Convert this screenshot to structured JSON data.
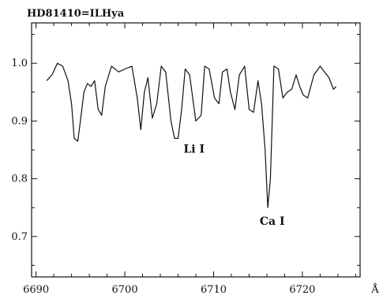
{
  "chart_data": {
    "type": "line",
    "title": "HD81410=ILHya",
    "xlabel": "",
    "x_unit": "Å",
    "ylabel": "",
    "xlim": [
      6689.5,
      6726.5
    ],
    "ylim": [
      0.63,
      1.07
    ],
    "x_ticks": [
      6690,
      6700,
      6710,
      6720
    ],
    "y_ticks": [
      0.7,
      0.8,
      0.9,
      1.0
    ],
    "x_tick_labels": [
      "6690",
      "6700",
      "6710",
      "6720"
    ],
    "y_tick_labels": [
      "0.7",
      "0.8",
      "0.9",
      "1.0"
    ],
    "grid": false,
    "series": [
      {
        "x": [
          6691.2,
          6691.8,
          6692.4,
          6693.0,
          6693.6,
          6694.0,
          6694.3,
          6694.7,
          6695.0,
          6695.4,
          6695.8,
          6696.2,
          6696.6,
          6697.0,
          6697.4,
          6697.8,
          6698.5,
          6699.3,
          6700.0,
          6700.8,
          6701.4,
          6701.8,
          6702.2,
          6702.6,
          6703.1,
          6703.6,
          6704.1,
          6704.6,
          6705.2,
          6705.6,
          6706.0,
          6706.4,
          6706.8,
          6707.3,
          6708.0,
          6708.6,
          6709.0,
          6709.5,
          6710.1,
          6710.6,
          6711.0,
          6711.5,
          6711.9,
          6712.4,
          6712.9,
          6713.5,
          6714.0,
          6714.5,
          6715.0,
          6715.4,
          6715.8,
          6716.1,
          6716.4,
          6716.8,
          6717.3,
          6717.8,
          6718.3,
          6718.8,
          6719.3,
          6719.7,
          6720.1,
          6720.6,
          6721.3,
          6722.0,
          6722.5,
          6723.0,
          6723.5,
          6723.8
        ],
        "y": [
          0.97,
          0.98,
          1.0,
          0.995,
          0.97,
          0.93,
          0.87,
          0.865,
          0.9,
          0.95,
          0.965,
          0.96,
          0.97,
          0.92,
          0.91,
          0.96,
          0.995,
          0.985,
          0.99,
          0.995,
          0.94,
          0.885,
          0.95,
          0.975,
          0.905,
          0.93,
          0.995,
          0.985,
          0.9,
          0.87,
          0.87,
          0.92,
          0.99,
          0.98,
          0.9,
          0.91,
          0.995,
          0.99,
          0.94,
          0.93,
          0.985,
          0.99,
          0.95,
          0.92,
          0.98,
          0.995,
          0.92,
          0.915,
          0.97,
          0.93,
          0.85,
          0.75,
          0.8,
          0.995,
          0.99,
          0.94,
          0.95,
          0.955,
          0.98,
          0.96,
          0.945,
          0.94,
          0.98,
          0.995,
          0.985,
          0.975,
          0.955,
          0.96
        ]
      }
    ],
    "annotations": [
      {
        "text": "Li I",
        "x": 6707.8,
        "y": 0.845
      },
      {
        "text": "Ca I",
        "x": 6716.6,
        "y": 0.72
      }
    ]
  }
}
